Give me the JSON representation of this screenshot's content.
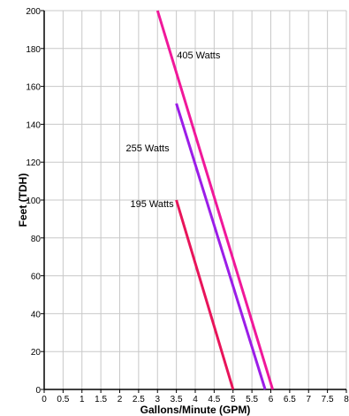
{
  "chart_data": {
    "type": "line",
    "title": "",
    "xlabel": "Gallons/Minute (GPM)",
    "ylabel": "Feet (TDH)",
    "xlim": [
      0,
      8
    ],
    "ylim": [
      0,
      200
    ],
    "grid": true,
    "x_ticks": [
      "0",
      "0.5",
      "1",
      "1.5",
      "2",
      "2.5",
      "3",
      "3.5",
      "4",
      "4.5",
      "5",
      "5.5",
      "6",
      "6.5",
      "7",
      "7.5",
      "8"
    ],
    "y_ticks": [
      "0",
      "20",
      "40",
      "60",
      "80",
      "100",
      "120",
      "140",
      "160",
      "180",
      "200"
    ],
    "series": [
      {
        "name": "195 Watts",
        "color": "#e8145a",
        "points": [
          [
            3.5,
            100
          ],
          [
            5.0,
            0
          ]
        ]
      },
      {
        "name": "255 Watts",
        "color": "#9b1de8",
        "points": [
          [
            3.5,
            151
          ],
          [
            5.85,
            0
          ]
        ]
      },
      {
        "name": "405 Watts",
        "color": "#f0189a",
        "points": [
          [
            3.0,
            200
          ],
          [
            6.05,
            0
          ]
        ]
      }
    ]
  }
}
